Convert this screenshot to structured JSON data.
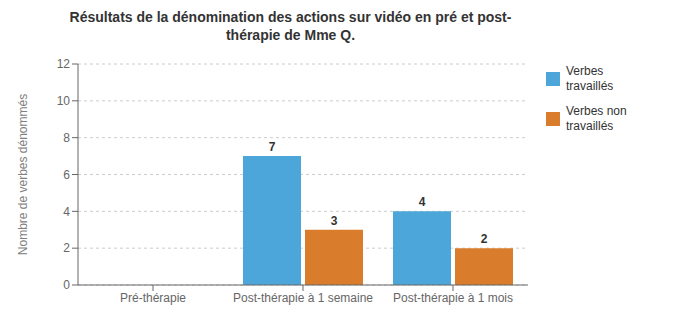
{
  "chart_data": {
    "type": "bar",
    "title": "Résultats de la dénomination des actions sur vidéo en pré et post-\nthérapie de Mme Q.",
    "ylabel": "Nombre de verbes dénommés",
    "categories": [
      "Pré-thérapie",
      "Post-thérapie à 1 semaine",
      "Post-thérapie à 1 mois"
    ],
    "series": [
      {
        "name": "Verbes\ntravaillés",
        "color": "#4da6d9",
        "values": [
          0,
          7,
          4
        ]
      },
      {
        "name": "Verbes non\ntravaillés",
        "color": "#d97c2b",
        "values": [
          0,
          3,
          2
        ]
      }
    ],
    "ylim": [
      0,
      12
    ],
    "yticks": [
      0,
      2,
      4,
      6,
      8,
      10,
      12
    ],
    "grid": true,
    "legend": "upper right",
    "data_labels": true
  }
}
